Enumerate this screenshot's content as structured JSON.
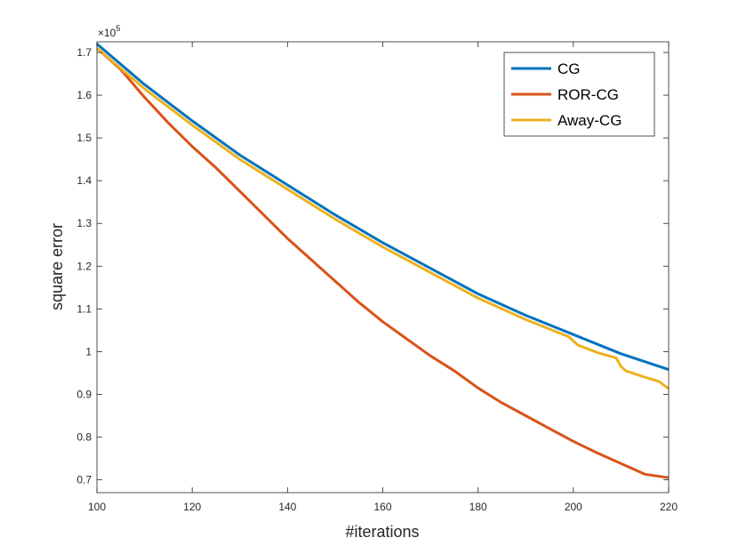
{
  "chart_data": {
    "type": "line",
    "title": "",
    "xlabel": "#iterations",
    "ylabel": "square error",
    "xlim": [
      100,
      220
    ],
    "ylim": [
      0.67,
      1.725
    ],
    "x_ticks": [
      100,
      120,
      140,
      160,
      180,
      200,
      220
    ],
    "x_tick_labels": [
      "100",
      "120",
      "140",
      "160",
      "180",
      "200",
      "220"
    ],
    "y_ticks": [
      0.7,
      0.8,
      0.9,
      1.0,
      1.1,
      1.2,
      1.3,
      1.4,
      1.5,
      1.6,
      1.7
    ],
    "y_tick_labels": [
      "0.7",
      "0.8",
      "0.9",
      "1",
      "1.1",
      "1.2",
      "1.3",
      "1.4",
      "1.5",
      "1.6",
      "1.7"
    ],
    "y_exponent": "×10",
    "y_exponent_power": "5",
    "legend_position": "top-right",
    "series": [
      {
        "name": "CG",
        "color": "#0072BD",
        "x": [
          100,
          110,
          120,
          130,
          140,
          150,
          160,
          170,
          180,
          190,
          200,
          210,
          220
        ],
        "values": [
          1.72,
          1.625,
          1.54,
          1.46,
          1.39,
          1.32,
          1.255,
          1.195,
          1.135,
          1.085,
          1.04,
          0.995,
          0.958
        ]
      },
      {
        "name": "ROR-CG",
        "color": "#D95319",
        "x": [
          100,
          105,
          110,
          115,
          120,
          125,
          130,
          135,
          140,
          145,
          150,
          155,
          160,
          165,
          170,
          175,
          180,
          185,
          190,
          195,
          200,
          205,
          210,
          215,
          220
        ],
        "values": [
          1.71,
          1.66,
          1.595,
          1.535,
          1.48,
          1.43,
          1.375,
          1.32,
          1.265,
          1.215,
          1.165,
          1.115,
          1.07,
          1.03,
          0.99,
          0.955,
          0.915,
          0.88,
          0.85,
          0.82,
          0.79,
          0.763,
          0.738,
          0.713,
          0.705
        ]
      },
      {
        "name": "Away-CG",
        "color": "#EDB120",
        "x": [
          100,
          110,
          120,
          130,
          140,
          150,
          160,
          170,
          180,
          190,
          199,
          201,
          205,
          209,
          210,
          211,
          215,
          218,
          220
        ],
        "values": [
          1.71,
          1.615,
          1.53,
          1.45,
          1.38,
          1.31,
          1.245,
          1.185,
          1.125,
          1.075,
          1.035,
          1.015,
          0.998,
          0.985,
          0.965,
          0.955,
          0.94,
          0.93,
          0.913
        ]
      }
    ]
  }
}
